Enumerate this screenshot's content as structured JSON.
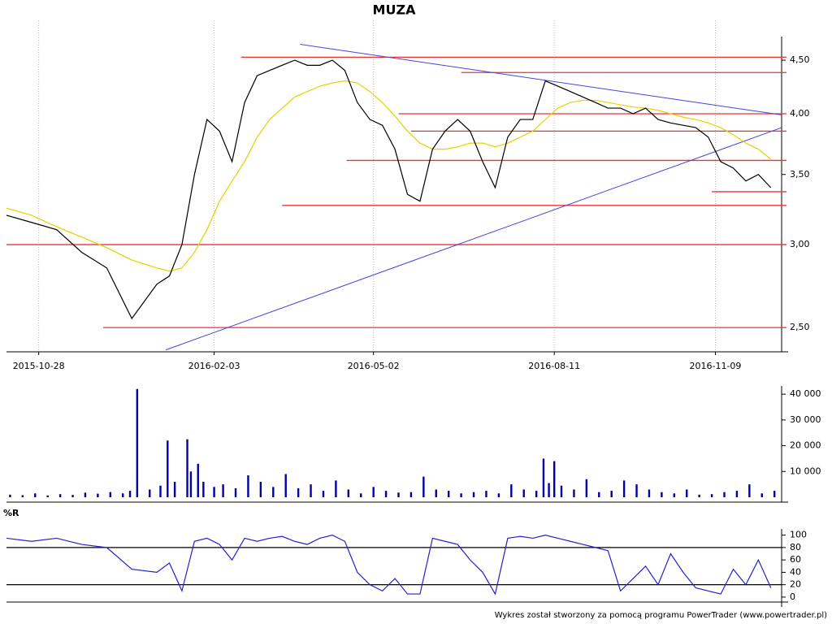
{
  "chart_data": [
    {
      "type": "line",
      "title": "MUZA",
      "log": true,
      "ylim": [
        2.37,
        4.74
      ],
      "xlim": [
        "2015-10-10",
        "2016-12-16"
      ],
      "yticks": [
        {
          "value": 2.5,
          "label": "2,50"
        },
        {
          "value": 3,
          "label": "3,00"
        },
        {
          "value": 3.5,
          "label": "3,50"
        },
        {
          "value": 4,
          "label": "4,00"
        },
        {
          "value": 4.5,
          "label": "4,50"
        }
      ],
      "xticks": [
        "2015-10-28",
        "2016-02-03",
        "2016-05-02",
        "2016-08-11",
        "2016-11-09"
      ],
      "grid": true,
      "x": [
        "2015-10-10",
        "2015-10-24",
        "2015-11-07",
        "2015-11-21",
        "2015-12-05",
        "2015-12-19",
        "2016-01-02",
        "2016-01-09",
        "2016-01-16",
        "2016-01-23",
        "2016-01-30",
        "2016-02-06",
        "2016-02-13",
        "2016-02-20",
        "2016-02-27",
        "2016-03-05",
        "2016-03-12",
        "2016-03-19",
        "2016-03-26",
        "2016-04-02",
        "2016-04-09",
        "2016-04-16",
        "2016-04-23",
        "2016-04-30",
        "2016-05-07",
        "2016-05-14",
        "2016-05-21",
        "2016-05-28",
        "2016-06-04",
        "2016-06-11",
        "2016-06-18",
        "2016-06-25",
        "2016-07-02",
        "2016-07-09",
        "2016-07-16",
        "2016-07-23",
        "2016-07-30",
        "2016-08-06",
        "2016-08-13",
        "2016-08-20",
        "2016-08-27",
        "2016-09-03",
        "2016-09-10",
        "2016-09-17",
        "2016-09-24",
        "2016-10-01",
        "2016-10-08",
        "2016-10-15",
        "2016-10-22",
        "2016-10-29",
        "2016-11-05",
        "2016-11-12",
        "2016-11-19",
        "2016-11-26",
        "2016-12-03",
        "2016-12-10"
      ],
      "series": [
        {
          "color": "#e8d000",
          "values": [
            3.25,
            3.2,
            3.12,
            3.05,
            2.98,
            2.9,
            2.85,
            2.83,
            2.85,
            2.95,
            3.1,
            3.3,
            3.45,
            3.6,
            3.8,
            3.95,
            4.05,
            4.15,
            4.2,
            4.25,
            4.28,
            4.3,
            4.28,
            4.2,
            4.1,
            3.98,
            3.85,
            3.75,
            3.7,
            3.7,
            3.72,
            3.75,
            3.75,
            3.72,
            3.75,
            3.8,
            3.85,
            3.95,
            4.05,
            4.1,
            4.12,
            4.12,
            4.1,
            4.08,
            4.06,
            4.05,
            4.03,
            4.0,
            3.97,
            3.95,
            3.92,
            3.88,
            3.82,
            3.75,
            3.7,
            3.62
          ]
        },
        {
          "color": "#000000",
          "values": [
            3.2,
            3.15,
            3.1,
            2.95,
            2.85,
            2.55,
            2.75,
            2.8,
            3.0,
            3.5,
            3.95,
            3.85,
            3.6,
            4.1,
            4.35,
            4.4,
            4.45,
            4.5,
            4.45,
            4.45,
            4.5,
            4.4,
            4.1,
            3.95,
            3.9,
            3.7,
            3.35,
            3.3,
            3.7,
            3.85,
            3.95,
            3.85,
            3.6,
            3.4,
            3.8,
            3.95,
            3.95,
            4.3,
            4.25,
            4.2,
            4.15,
            4.1,
            4.05,
            4.05,
            4.0,
            4.05,
            3.95,
            3.92,
            3.9,
            3.88,
            3.8,
            3.6,
            3.55,
            3.45,
            3.5,
            3.4
          ]
        }
      ],
      "trend_lines": [
        {
          "color": "#4444dd",
          "x": [
            "2016-03-22",
            "2016-12-16"
          ],
          "values": [
            4.66,
            3.99
          ]
        },
        {
          "color": "#4444dd",
          "x": [
            "2016-01-07",
            "2016-12-16"
          ],
          "values": [
            2.38,
            3.88
          ]
        }
      ],
      "reference_lines": [
        {
          "value": 4.53,
          "from": "2016-02-18"
        },
        {
          "value": 4.38,
          "from": "2016-06-20"
        },
        {
          "value": 4.0,
          "from": "2016-05-16"
        },
        {
          "value": 3.85,
          "from": "2016-05-23"
        },
        {
          "value": 3.61,
          "from": "2016-04-17"
        },
        {
          "value": 3.37,
          "from": "2016-11-07"
        },
        {
          "value": 3.27,
          "from": "2016-03-12"
        },
        {
          "value": 3.0,
          "from": "2015-10-10"
        },
        {
          "value": 2.5,
          "from": "2015-12-03"
        }
      ],
      "reference_color": "#ee3333"
    },
    {
      "type": "bar",
      "color": "#0000aa",
      "ylim": [
        0,
        43200
      ],
      "xlim": [
        "2015-10-10",
        "2016-12-16"
      ],
      "yticks": [
        {
          "value": 10000,
          "label": "10 000"
        },
        {
          "value": 20000,
          "label": "20 000"
        },
        {
          "value": 30000,
          "label": "30 000"
        },
        {
          "value": 40000,
          "label": "40 000"
        }
      ],
      "x": [
        "2015-10-12",
        "2015-10-19",
        "2015-10-26",
        "2015-11-02",
        "2015-11-09",
        "2015-11-16",
        "2015-11-23",
        "2015-11-30",
        "2015-12-07",
        "2015-12-14",
        "2015-12-18",
        "2015-12-22",
        "2015-12-29",
        "2016-01-04",
        "2016-01-08",
        "2016-01-12",
        "2016-01-19",
        "2016-01-21",
        "2016-01-25",
        "2016-01-28",
        "2016-02-03",
        "2016-02-08",
        "2016-02-15",
        "2016-02-22",
        "2016-02-29",
        "2016-03-07",
        "2016-03-14",
        "2016-03-21",
        "2016-03-28",
        "2016-04-04",
        "2016-04-11",
        "2016-04-18",
        "2016-04-25",
        "2016-05-02",
        "2016-05-09",
        "2016-05-16",
        "2016-05-23",
        "2016-05-30",
        "2016-06-06",
        "2016-06-13",
        "2016-06-20",
        "2016-06-27",
        "2016-07-04",
        "2016-07-11",
        "2016-07-18",
        "2016-07-25",
        "2016-08-01",
        "2016-08-05",
        "2016-08-08",
        "2016-08-11",
        "2016-08-15",
        "2016-08-22",
        "2016-08-29",
        "2016-09-05",
        "2016-09-12",
        "2016-09-19",
        "2016-09-26",
        "2016-10-03",
        "2016-10-10",
        "2016-10-17",
        "2016-10-24",
        "2016-10-31",
        "2016-11-07",
        "2016-11-14",
        "2016-11-21",
        "2016-11-28",
        "2016-12-05",
        "2016-12-12"
      ],
      "values": [
        1000,
        800,
        1500,
        700,
        1200,
        900,
        1800,
        1400,
        2000,
        1500,
        2500,
        42000,
        3000,
        4500,
        22000,
        6000,
        22500,
        10000,
        13000,
        6000,
        4000,
        5000,
        3500,
        8500,
        6000,
        4000,
        9000,
        3500,
        5000,
        2500,
        6500,
        3000,
        1500,
        4000,
        2500,
        1800,
        2000,
        8000,
        3000,
        2500,
        1500,
        2000,
        2500,
        1500,
        5000,
        3000,
        2500,
        15000,
        5500,
        14000,
        4500,
        3000,
        7000,
        2000,
        2500,
        6500,
        5000,
        3000,
        2000,
        1500,
        3000,
        1000,
        1200,
        2000,
        2500,
        5000,
        1500,
        2500
      ]
    },
    {
      "type": "line",
      "title": "%R",
      "ylim": [
        -8,
        110
      ],
      "xlim": [
        "2015-10-10",
        "2016-12-16"
      ],
      "yticks": [
        0,
        20,
        40,
        60,
        80,
        100
      ],
      "reference_lines": [
        {
          "value": 80,
          "from": "2015-10-10"
        },
        {
          "value": 20,
          "from": "2015-10-10"
        }
      ],
      "reference_color": "#000000",
      "x": [
        "2015-10-10",
        "2015-10-24",
        "2015-11-07",
        "2015-11-21",
        "2015-12-05",
        "2015-12-19",
        "2016-01-02",
        "2016-01-09",
        "2016-01-16",
        "2016-01-23",
        "2016-01-30",
        "2016-02-06",
        "2016-02-13",
        "2016-02-20",
        "2016-02-27",
        "2016-03-05",
        "2016-03-12",
        "2016-03-19",
        "2016-03-26",
        "2016-04-02",
        "2016-04-09",
        "2016-04-16",
        "2016-04-23",
        "2016-04-30",
        "2016-05-07",
        "2016-05-14",
        "2016-05-21",
        "2016-05-28",
        "2016-06-04",
        "2016-06-11",
        "2016-06-18",
        "2016-06-25",
        "2016-07-02",
        "2016-07-09",
        "2016-07-16",
        "2016-07-23",
        "2016-07-30",
        "2016-08-06",
        "2016-08-13",
        "2016-08-20",
        "2016-08-27",
        "2016-09-03",
        "2016-09-10",
        "2016-09-17",
        "2016-09-24",
        "2016-10-01",
        "2016-10-08",
        "2016-10-15",
        "2016-10-22",
        "2016-10-29",
        "2016-11-05",
        "2016-11-12",
        "2016-11-19",
        "2016-11-26",
        "2016-12-03",
        "2016-12-10"
      ],
      "series": [
        {
          "color": "#2222cc",
          "values": [
            95,
            90,
            95,
            85,
            80,
            45,
            40,
            55,
            10,
            90,
            95,
            85,
            60,
            95,
            90,
            95,
            98,
            90,
            85,
            95,
            100,
            90,
            40,
            20,
            10,
            30,
            5,
            5,
            95,
            90,
            85,
            60,
            40,
            5,
            95,
            98,
            95,
            100,
            95,
            90,
            85,
            80,
            75,
            10,
            30,
            50,
            20,
            70,
            40,
            15,
            10,
            5,
            45,
            20,
            60,
            15
          ]
        }
      ]
    }
  ],
  "footer": "Wykres został stworzony za pomocą programu PowerTrader (www.powertrader.pl)"
}
